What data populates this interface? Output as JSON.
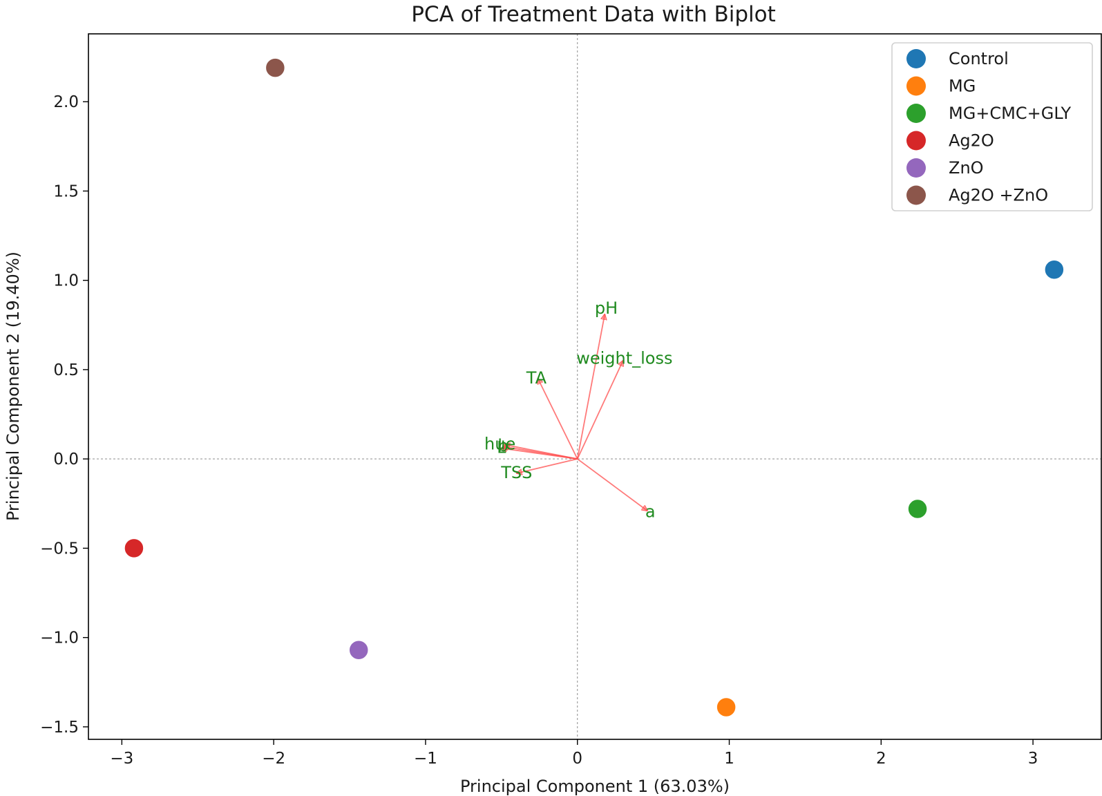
{
  "chart_data": {
    "type": "scatter",
    "title": "PCA of Treatment Data with Biplot",
    "xlabel": "Principal Component 1 (63.03%)",
    "ylabel": "Principal Component 2 (19.40%)",
    "xlim": [
      -3.22,
      3.45
    ],
    "ylim": [
      -1.57,
      2.38
    ],
    "xticks": [
      {
        "value": -3,
        "label": "−3"
      },
      {
        "value": -2,
        "label": "−2"
      },
      {
        "value": -1,
        "label": "−1"
      },
      {
        "value": 0,
        "label": "0"
      },
      {
        "value": 1,
        "label": "1"
      },
      {
        "value": 2,
        "label": "2"
      },
      {
        "value": 3,
        "label": "3"
      }
    ],
    "yticks": [
      {
        "value": -1.5,
        "label": "−1.5"
      },
      {
        "value": -1.0,
        "label": "−1.0"
      },
      {
        "value": -0.5,
        "label": "−0.5"
      },
      {
        "value": 0.0,
        "label": "0.0"
      },
      {
        "value": 0.5,
        "label": "0.5"
      },
      {
        "value": 1.0,
        "label": "1.0"
      },
      {
        "value": 1.5,
        "label": "1.5"
      },
      {
        "value": 2.0,
        "label": "2.0"
      }
    ],
    "grid": false,
    "reference_lines": {
      "x": 0,
      "y": 0
    },
    "legend_position": "top-right",
    "series": [
      {
        "name": "Control",
        "color": "#1f77b4",
        "x": 3.14,
        "y": 1.06
      },
      {
        "name": "MG",
        "color": "#ff7f0e",
        "x": 0.98,
        "y": -1.39
      },
      {
        "name": "MG+CMC+GLY",
        "color": "#2ca02c",
        "x": 2.24,
        "y": -0.28
      },
      {
        "name": "Ag2O",
        "color": "#d62728",
        "x": -2.92,
        "y": -0.5
      },
      {
        "name": "ZnO",
        "color": "#9467bd",
        "x": -1.44,
        "y": -1.07
      },
      {
        "name": "Ag2O +ZnO",
        "color": "#8c564b",
        "x": -1.99,
        "y": 2.19
      }
    ],
    "loadings": [
      {
        "name": "pH",
        "x": 0.18,
        "y": 0.81,
        "label_x": 0.19,
        "label_y": 0.84
      },
      {
        "name": "weight_loss",
        "x": 0.3,
        "y": 0.55,
        "label_x": 0.31,
        "label_y": 0.56
      },
      {
        "name": "TA",
        "x": -0.26,
        "y": 0.45,
        "label_x": -0.27,
        "label_y": 0.45
      },
      {
        "name": "hue",
        "x": -0.48,
        "y": 0.08,
        "label_x": -0.51,
        "label_y": 0.08
      },
      {
        "name": "b",
        "x": -0.49,
        "y": 0.07,
        "label_x": -0.49,
        "label_y": 0.07
      },
      {
        "name": "L",
        "x": -0.5,
        "y": 0.06,
        "label_x": -0.5,
        "label_y": 0.06
      },
      {
        "name": "TSS",
        "x": -0.4,
        "y": -0.08,
        "label_x": -0.4,
        "label_y": -0.08
      },
      {
        "name": "a",
        "x": 0.46,
        "y": -0.29,
        "label_x": 0.48,
        "label_y": -0.3
      }
    ],
    "loading_color": "#ff4d4d",
    "loading_label_color": "#1f8a1f"
  }
}
